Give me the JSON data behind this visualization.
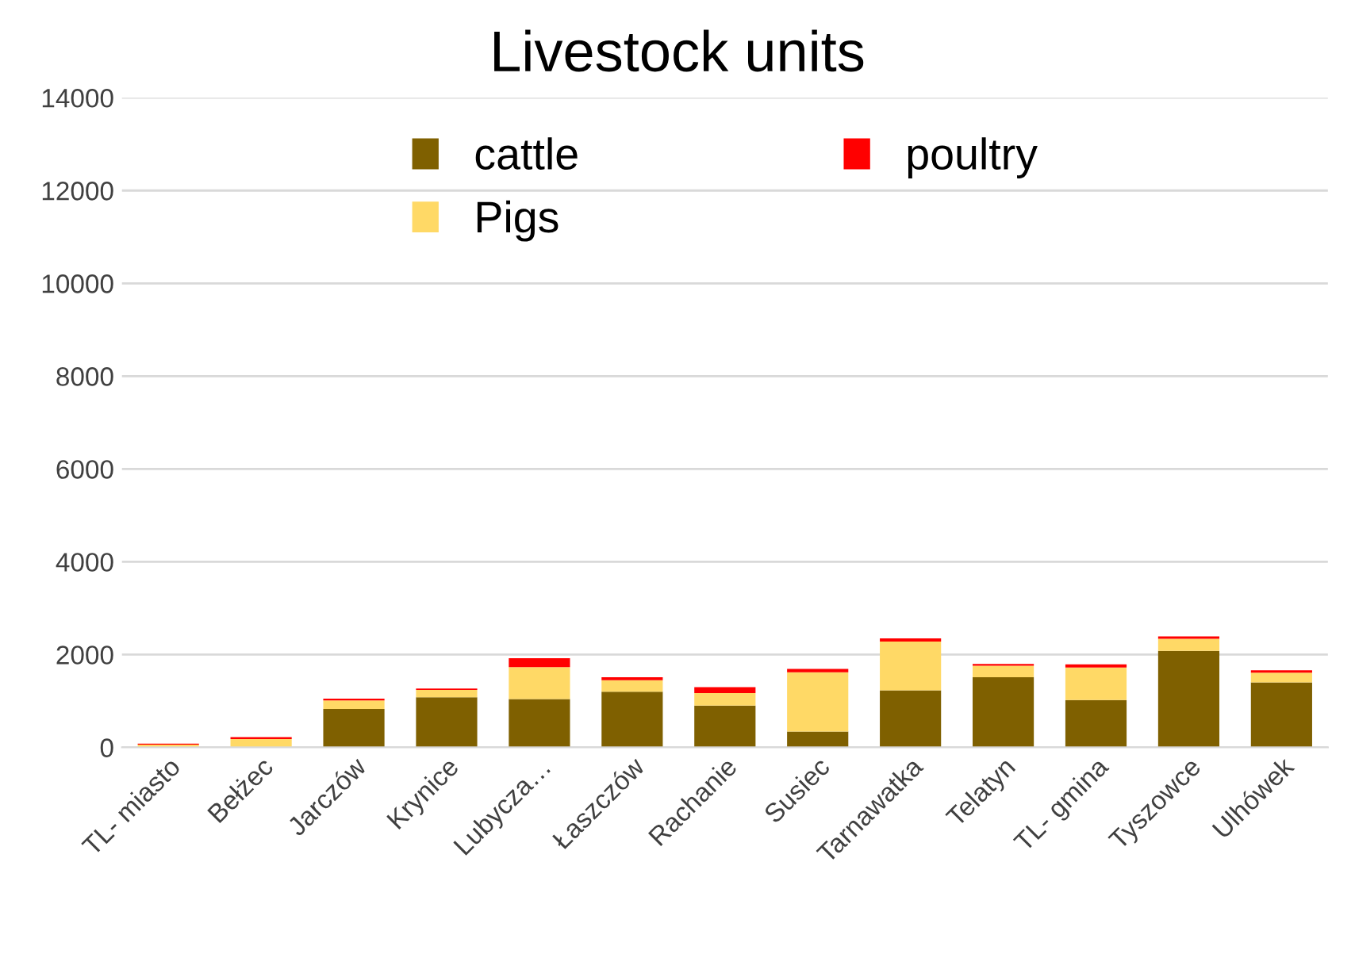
{
  "chart_data": {
    "type": "bar",
    "title": "Livestock units",
    "stacked": true,
    "categories": [
      "TL- miasto",
      "Bełżec",
      "Jarczów",
      "Krynice",
      "Lubycza…",
      "Łaszczów",
      "Rachanie",
      "Susiec",
      "Tarnawatka",
      "Telatyn",
      "TL- gmina",
      "Tyszowce",
      "Ulhówek"
    ],
    "series": [
      {
        "name": "cattle",
        "color": "#7f6000",
        "values": [
          null,
          null,
          830,
          1080,
          1040,
          1200,
          900,
          340,
          1230,
          1510,
          1020,
          2080,
          1400
        ]
      },
      {
        "name": "Pigs",
        "color": "#ffd966",
        "values": [
          60,
          180,
          180,
          160,
          690,
          250,
          270,
          1280,
          1050,
          250,
          700,
          260,
          210
        ]
      },
      {
        "name": "poultry",
        "color": "#ff0000",
        "values": [
          20,
          40,
          40,
          30,
          190,
          60,
          130,
          70,
          70,
          40,
          70,
          50,
          50
        ]
      }
    ],
    "ylim": [
      0,
      14000
    ],
    "yticks": [
      0,
      2000,
      4000,
      6000,
      8000,
      10000,
      12000,
      14000
    ],
    "grid": "y",
    "legend": "top"
  }
}
